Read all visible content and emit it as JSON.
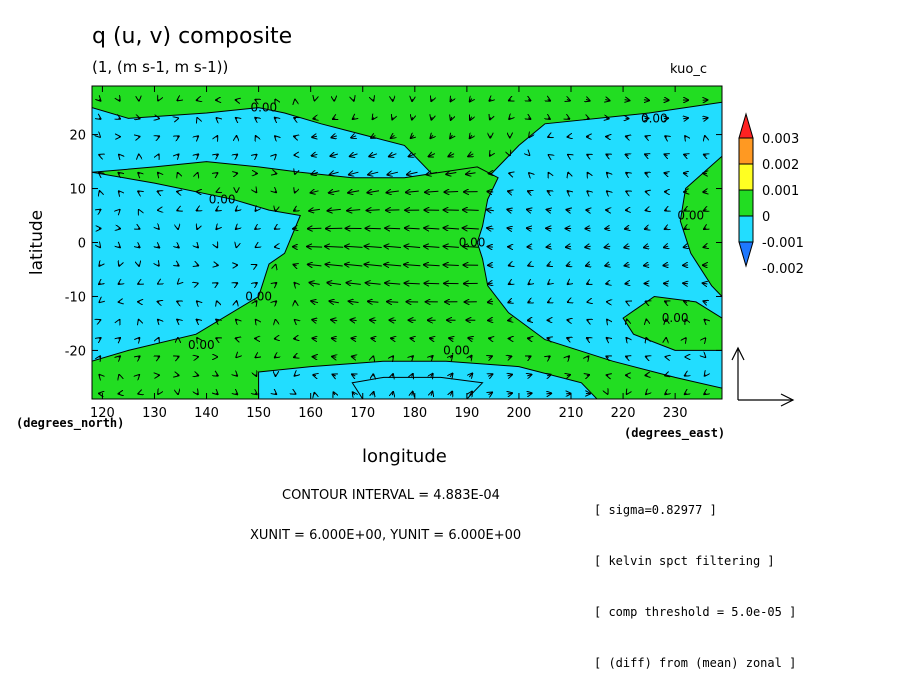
{
  "header": {
    "title": "q (u, v) composite",
    "subtitle": "(1, (m s-1, m s-1))",
    "model": "kuo_c"
  },
  "footer": {
    "contour_interval": "CONTOUR INTERVAL = 4.883E-04",
    "vector_units": "XUNIT = 6.000E+00, YUNIT = 6.000E+00",
    "notes": [
      "[ sigma=0.82977 ]",
      "[ kelvin spct filtering ]",
      "[ comp threshold = 5.0e-05 ]",
      "[ (diff) from (mean) zonal ]"
    ]
  },
  "colors": {
    "positive_fill": "#22dd22",
    "negative_fill": "#22ddff",
    "contour_line": "#000000",
    "colorbar": [
      "#1e78ff",
      "#22ddff",
      "#22dd22",
      "#ffff22",
      "#ff9922",
      "#ff2222"
    ]
  },
  "chart_data": {
    "type": "contour+vector",
    "xlabel": "longitude",
    "ylabel": "latitude",
    "x_units": "(degrees_east)",
    "y_units": "(degrees_north)",
    "xlim": [
      118,
      239
    ],
    "ylim": [
      -29,
      29
    ],
    "xticks": [
      120,
      130,
      140,
      150,
      160,
      170,
      180,
      190,
      200,
      210,
      220,
      230
    ],
    "yticks": [
      -20,
      -10,
      0,
      10,
      20
    ],
    "colorbar": {
      "levels": [
        "0.003",
        "0.002",
        "0.001",
        "0",
        "-0.001",
        "-0.002"
      ]
    },
    "contour_labels": [
      {
        "text": "0.00",
        "lon": 151,
        "lat": 25
      },
      {
        "text": "0.00",
        "lon": 143,
        "lat": 8
      },
      {
        "text": "0.00",
        "lon": 139,
        "lat": -19
      },
      {
        "text": "0.00",
        "lon": 150,
        "lat": -10
      },
      {
        "text": "0.00",
        "lon": 191,
        "lat": 0
      },
      {
        "text": "0.00",
        "lon": 226,
        "lat": 23
      },
      {
        "text": "0.00",
        "lon": 188,
        "lat": -20
      },
      {
        "text": "0.00",
        "lon": 230,
        "lat": -14
      },
      {
        "text": "0.00",
        "lon": 233,
        "lat": 5
      }
    ],
    "positive_regions": [
      [
        [
          118,
          29
        ],
        [
          239,
          29
        ],
        [
          239,
          26
        ],
        [
          225,
          24
        ],
        [
          205,
          22
        ],
        [
          200,
          18
        ],
        [
          196,
          14
        ],
        [
          192,
          10
        ],
        [
          188,
          8
        ],
        [
          186,
          9
        ],
        [
          184,
          12
        ],
        [
          178,
          18
        ],
        [
          170,
          20
        ],
        [
          162,
          22
        ],
        [
          155,
          24
        ],
        [
          150,
          25
        ],
        [
          140,
          24
        ],
        [
          125,
          23
        ],
        [
          118,
          25
        ]
      ],
      [
        [
          118,
          13
        ],
        [
          130,
          11
        ],
        [
          145,
          8
        ],
        [
          152,
          6
        ],
        [
          158,
          5
        ],
        [
          155,
          -2
        ],
        [
          152,
          -4
        ],
        [
          150,
          -10
        ],
        [
          138,
          -17
        ],
        [
          125,
          -20
        ],
        [
          118,
          -22
        ],
        [
          118,
          -29
        ],
        [
          239,
          -29
        ],
        [
          239,
          -27
        ],
        [
          230,
          -25
        ],
        [
          218,
          -22
        ],
        [
          205,
          -18
        ],
        [
          198,
          -13
        ],
        [
          194,
          -8
        ],
        [
          193,
          -3
        ],
        [
          192,
          0
        ],
        [
          193,
          3
        ],
        [
          194,
          8
        ],
        [
          196,
          12
        ],
        [
          192,
          14
        ],
        [
          185,
          13
        ],
        [
          178,
          12
        ],
        [
          168,
          12
        ],
        [
          158,
          13
        ],
        [
          150,
          14
        ],
        [
          140,
          15
        ],
        [
          130,
          14
        ],
        [
          118,
          13
        ]
      ],
      [
        [
          239,
          16
        ],
        [
          232,
          10
        ],
        [
          231,
          4
        ],
        [
          233,
          -2
        ],
        [
          237,
          -8
        ],
        [
          239,
          -10
        ]
      ],
      [
        [
          220,
          -14
        ],
        [
          226,
          -10
        ],
        [
          234,
          -11
        ],
        [
          239,
          -14
        ],
        [
          239,
          -20
        ],
        [
          230,
          -20
        ],
        [
          222,
          -17
        ]
      ]
    ],
    "negative_islands": [
      [
        [
          150,
          -24
        ],
        [
          160,
          -23
        ],
        [
          174,
          -22
        ],
        [
          186,
          -22
        ],
        [
          200,
          -23
        ],
        [
          212,
          -26
        ],
        [
          215,
          -29
        ],
        [
          150,
          -29
        ]
      ],
      [
        [
          168,
          -26
        ],
        [
          174,
          -25
        ],
        [
          185,
          -25
        ],
        [
          193,
          -26
        ],
        [
          190,
          -29
        ],
        [
          170,
          -29
        ]
      ]
    ],
    "vectors": {
      "grid_dlon": 3.75,
      "grid_dlat": 3.4,
      "reference_u": 6.0,
      "reference_v": 6.0,
      "pattern": "strong easterly flow between 158E and 195E near the equator, weak westerlies elsewhere"
    }
  }
}
